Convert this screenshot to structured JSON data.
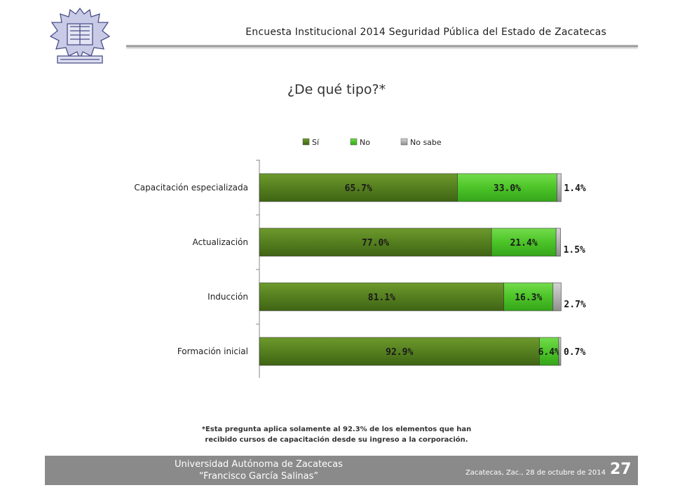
{
  "header": {
    "title": "Encuesta Institucional 2014 Seguridad Pública del Estado de Zacatecas",
    "logo_icon": "university-seal-icon"
  },
  "slide": {
    "title": "¿De qué tipo?*"
  },
  "chart_data": {
    "type": "bar",
    "orientation": "horizontal",
    "stacked": true,
    "categories": [
      "Capacitación especializada",
      "Actualización",
      "Inducción",
      "Formación inicial"
    ],
    "series": [
      {
        "name": "Sí",
        "values": [
          65.7,
          77.0,
          81.1,
          92.9
        ],
        "labels": [
          "65.7%",
          "77.0%",
          "81.1%",
          "92.9%"
        ],
        "color": "#4f7a1c"
      },
      {
        "name": "No",
        "values": [
          33.0,
          21.4,
          16.3,
          6.4
        ],
        "labels": [
          "33.0%",
          "21.4%",
          "16.3%",
          "6.4%"
        ],
        "color": "#4cc428"
      },
      {
        "name": "No sabe",
        "values": [
          1.4,
          1.5,
          2.7,
          0.7
        ],
        "labels": [
          "1.4%",
          "1.5%",
          "2.7%",
          "0.7%"
        ],
        "color": "#b3b3b3"
      }
    ],
    "xlim": [
      0,
      100
    ],
    "legend_position": "top",
    "grid": false
  },
  "footnote": {
    "line1": "*Esta pregunta aplica solamente al 92.3% de los elementos que han",
    "line2": "recibido cursos de capacitación desde su ingreso a la corporación."
  },
  "footer": {
    "university": "Universidad Autónoma de Zacatecas",
    "university_sub": "“Francisco García Salinas”",
    "date": "Zacatecas, Zac., 28 de octubre de 2014",
    "page_number": "27"
  }
}
